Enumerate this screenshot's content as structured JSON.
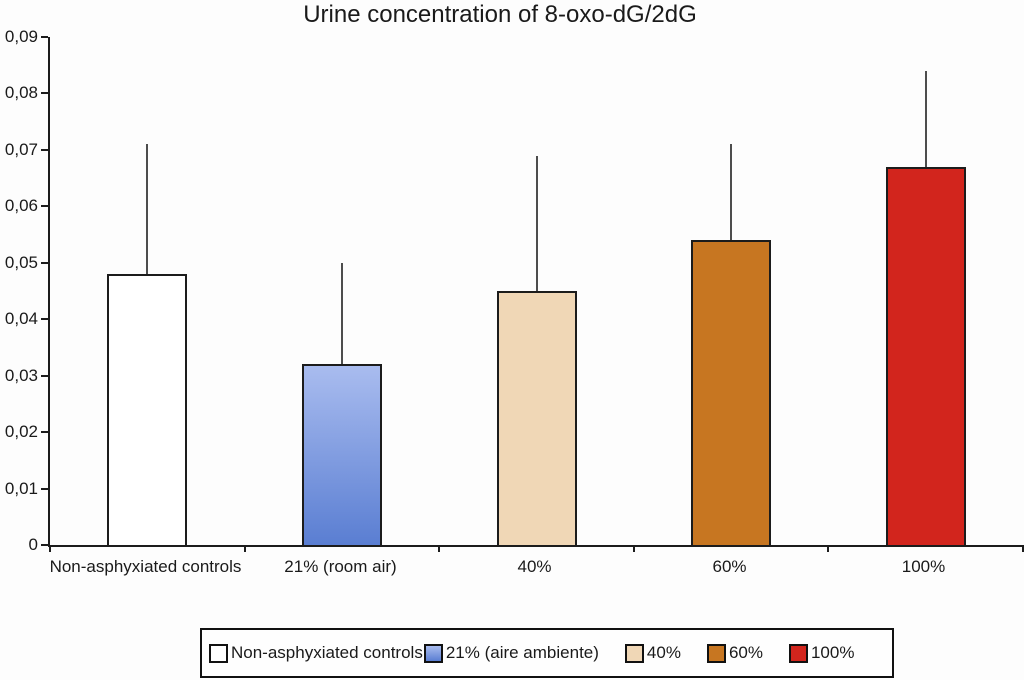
{
  "title": "Urine concentration of 8-oxo-dG/2dG",
  "chart_data": {
    "type": "bar",
    "title": "Urine concentration of 8-oxo-dG/2dG",
    "categories": [
      "Non-asphyxiated controls",
      "21% (room air)",
      "40%",
      "60%",
      "100%"
    ],
    "values": [
      0.048,
      0.032,
      0.045,
      0.054,
      0.067
    ],
    "error_upper": [
      0.071,
      0.05,
      0.069,
      0.071,
      0.084
    ],
    "bar_fills": [
      {
        "type": "solid",
        "color": "#ffffff"
      },
      {
        "type": "gradient",
        "from": "#a9bcef",
        "to": "#5a7ed2"
      },
      {
        "type": "solid",
        "color": "#f0d7b6"
      },
      {
        "type": "solid",
        "color": "#c77621"
      },
      {
        "type": "solid",
        "color": "#d2251d"
      }
    ],
    "bar_border_color": "#1c1c1c",
    "error_bar_color": "#4d4d4d",
    "xlabel": "",
    "ylabel": "",
    "ylim": [
      0,
      0.09
    ],
    "y_ticks": [
      0,
      0.01,
      0.02,
      0.03,
      0.04,
      0.05,
      0.06,
      0.07,
      0.08,
      0.09
    ],
    "y_tick_labels": [
      "0",
      "0,01",
      "0,02",
      "0,03",
      "0,04",
      "0,05",
      "0,06",
      "0,07",
      "0,08",
      "0,09"
    ],
    "decimal_separator": ",",
    "grid": false,
    "legend": {
      "position": "bottom",
      "entries": [
        {
          "label": "Non-asphyxiated controls"
        },
        {
          "label": "21% (aire ambiente)"
        },
        {
          "label": "40%"
        },
        {
          "label": "60%"
        },
        {
          "label": "100%"
        }
      ]
    }
  }
}
